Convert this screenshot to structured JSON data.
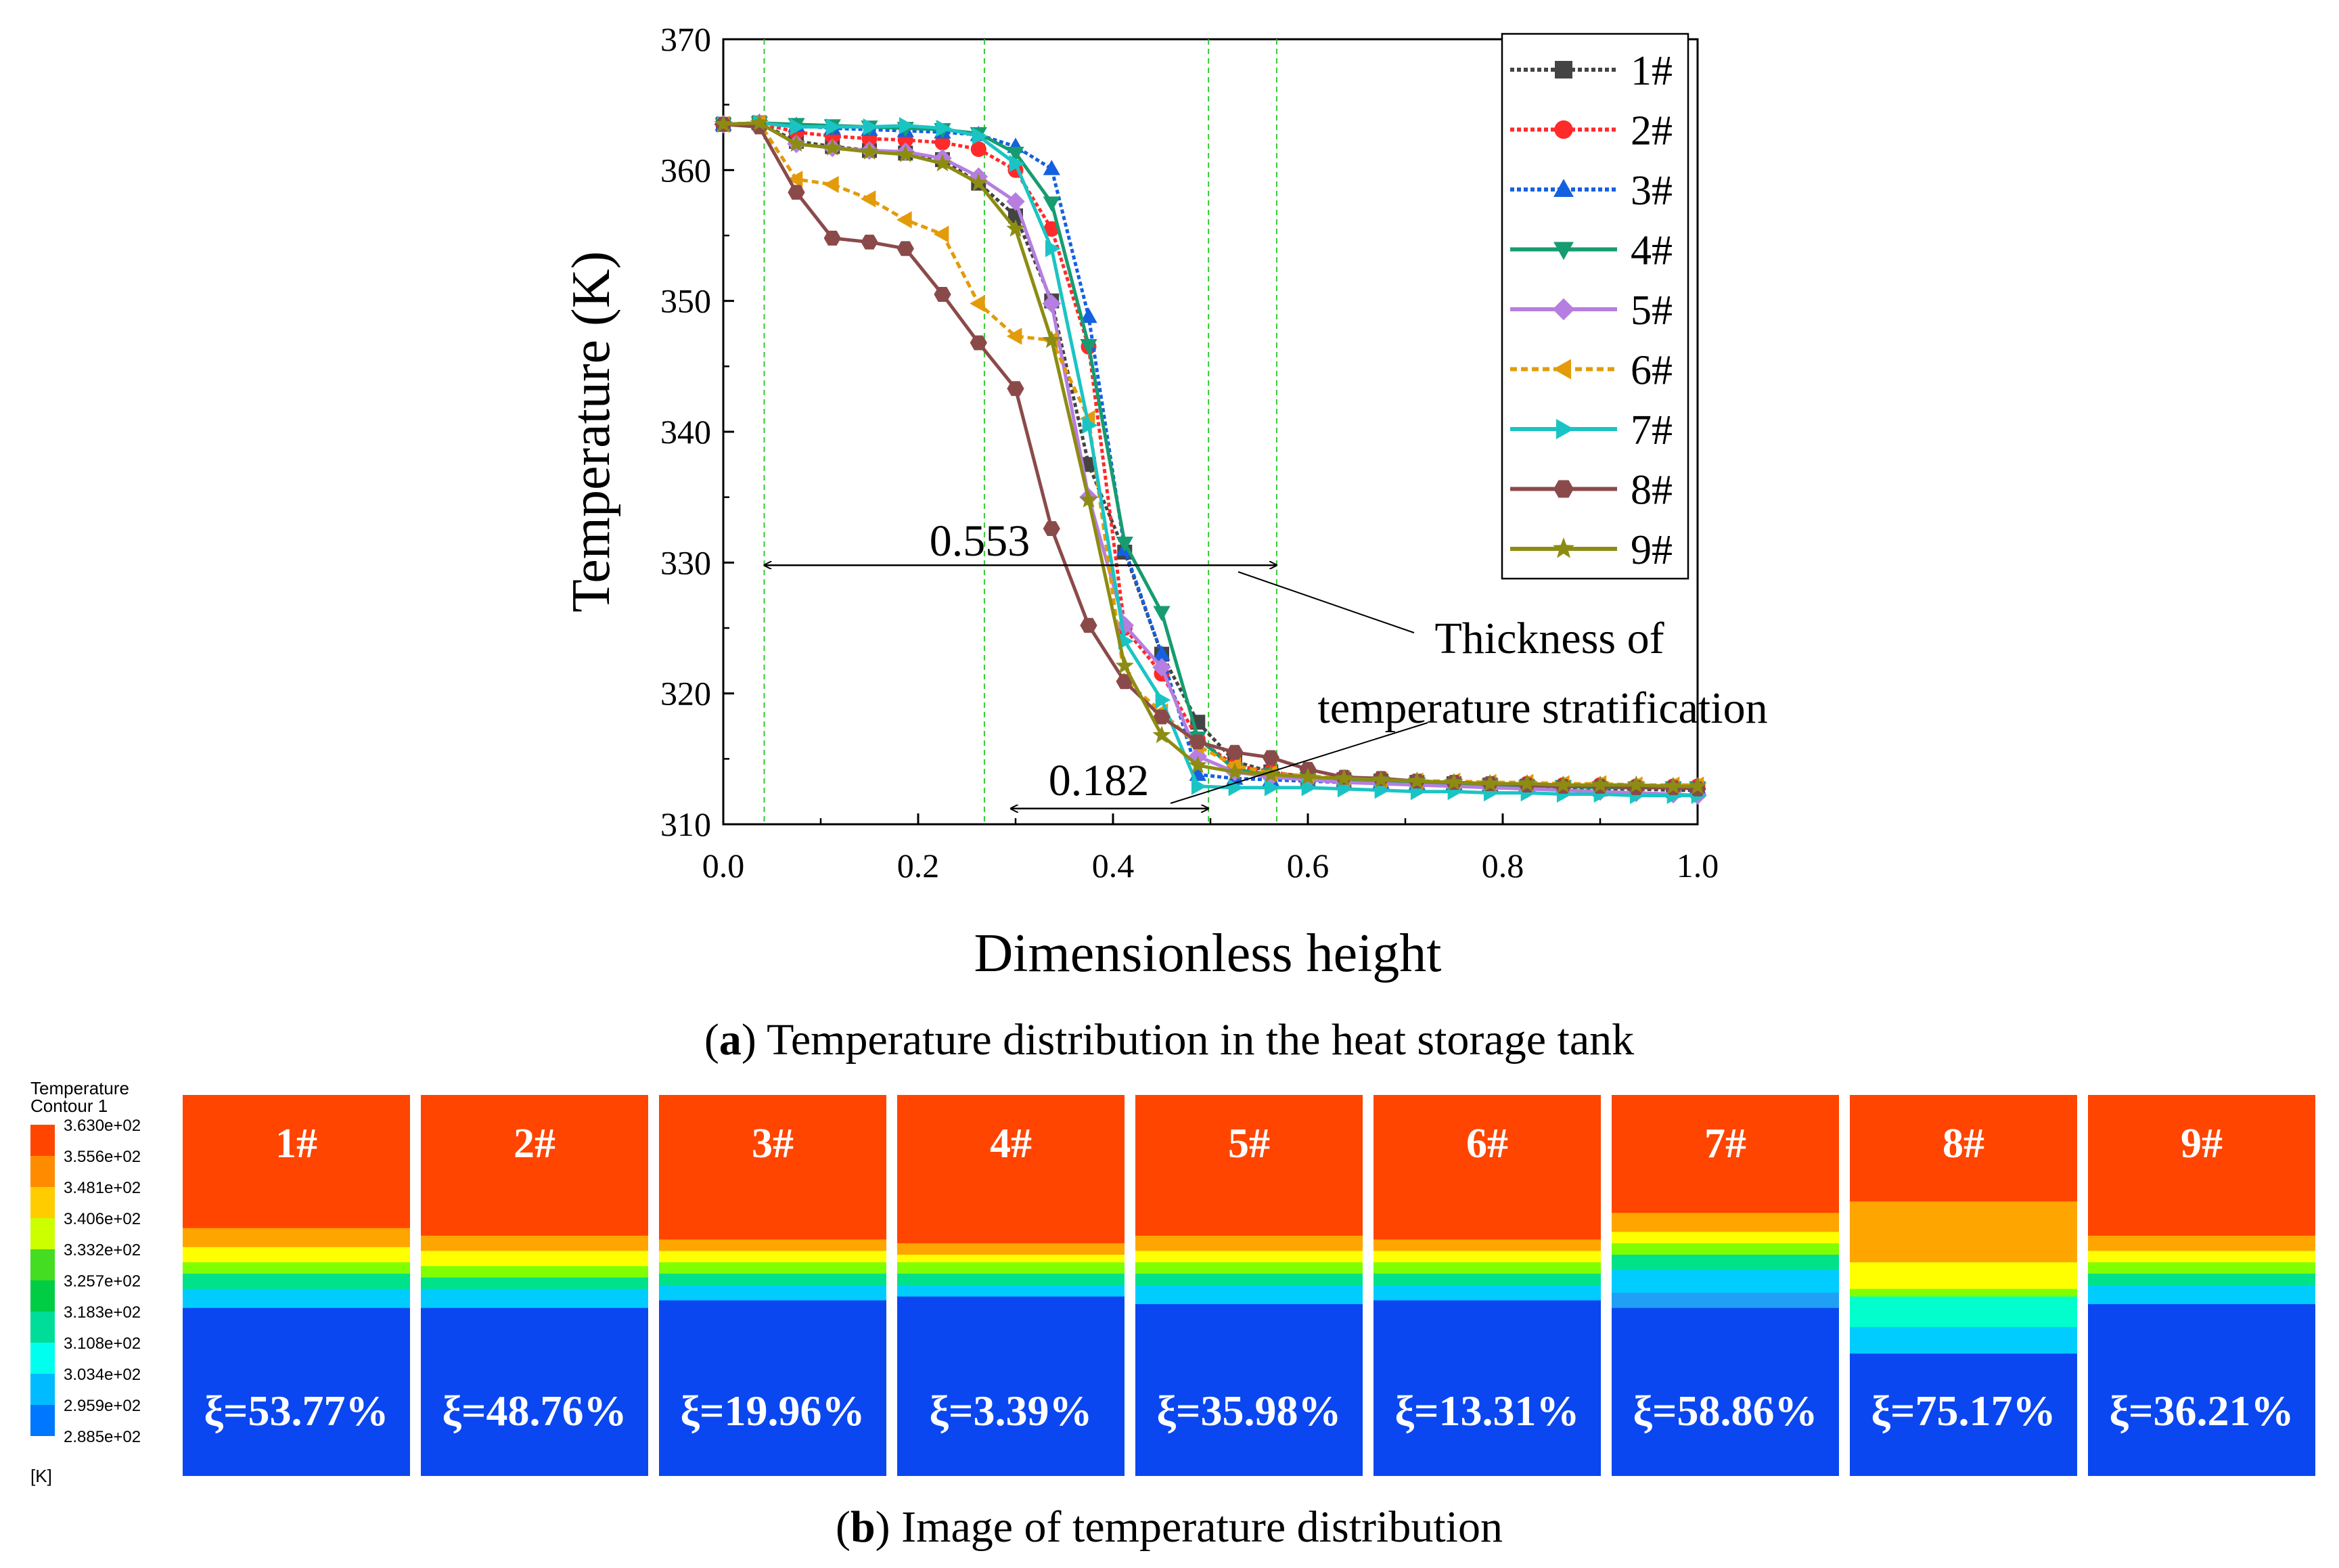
{
  "chart_data": {
    "type": "line",
    "title": "",
    "xlabel": "Dimensionless height",
    "ylabel": "Temperature (K)",
    "xlim": [
      0.0,
      1.0
    ],
    "ylim": [
      310,
      370
    ],
    "xticks": [
      "0.0",
      "0.2",
      "0.4",
      "0.6",
      "0.8",
      "1.0"
    ],
    "yticks": [
      "310",
      "320",
      "330",
      "340",
      "350",
      "360",
      "370"
    ],
    "x": [
      0.0,
      0.037,
      0.075,
      0.112,
      0.15,
      0.187,
      0.225,
      0.262,
      0.3,
      0.337,
      0.375,
      0.412,
      0.45,
      0.487,
      0.525,
      0.562,
      0.6,
      0.637,
      0.675,
      0.712,
      0.75,
      0.787,
      0.825,
      0.862,
      0.9,
      0.937,
      0.975,
      1.0
    ],
    "series": [
      {
        "name": "1#",
        "color": "#444444",
        "marker": "square",
        "dash": "6,4",
        "values": [
          363.5,
          363.6,
          362.2,
          361.8,
          361.5,
          361.3,
          360.8,
          359.0,
          356.5,
          350.0,
          337.5,
          330.8,
          323.0,
          317.8,
          314.8,
          314.0,
          313.6,
          313.4,
          313.3,
          313.2,
          313.1,
          313.0,
          312.9,
          312.8,
          312.7,
          312.7,
          312.6,
          312.6
        ]
      },
      {
        "name": "2#",
        "color": "#ff2a2a",
        "marker": "circle",
        "dash": "6,4",
        "values": [
          363.5,
          363.6,
          362.9,
          362.6,
          362.4,
          362.3,
          362.1,
          361.6,
          360.0,
          355.5,
          346.5,
          325.0,
          321.5,
          316.5,
          314.5,
          314.0,
          313.6,
          313.4,
          313.3,
          313.2,
          313.2,
          313.1,
          313.1,
          313.0,
          313.0,
          312.9,
          312.9,
          312.9
        ]
      },
      {
        "name": "3#",
        "color": "#1560e0",
        "marker": "triangle-up",
        "dash": "6,4",
        "values": [
          363.5,
          363.6,
          363.4,
          363.2,
          363.1,
          363.0,
          362.9,
          362.7,
          361.8,
          360.1,
          348.8,
          331.0,
          323.0,
          313.8,
          313.5,
          313.4,
          313.3,
          313.2,
          313.2,
          313.1,
          313.1,
          313.0,
          313.0,
          313.0,
          312.9,
          312.9,
          312.8,
          312.8
        ]
      },
      {
        "name": "4#",
        "color": "#169c70",
        "marker": "triangle-down",
        "dash": "",
        "values": [
          363.5,
          363.6,
          363.5,
          363.4,
          363.3,
          363.2,
          363.1,
          362.8,
          361.3,
          357.5,
          346.6,
          331.5,
          326.2,
          316.6,
          314.2,
          313.8,
          313.5,
          313.3,
          313.2,
          313.1,
          313.0,
          313.0,
          312.9,
          312.9,
          312.8,
          312.8,
          312.8,
          312.8
        ]
      },
      {
        "name": "5#",
        "color": "#b57ee0",
        "marker": "diamond",
        "dash": "",
        "values": [
          363.5,
          363.6,
          362.0,
          361.7,
          361.5,
          361.4,
          360.9,
          359.5,
          357.6,
          349.8,
          335.0,
          325.2,
          322.0,
          315.2,
          314.0,
          313.6,
          313.4,
          313.2,
          313.1,
          313.0,
          312.9,
          312.8,
          312.7,
          312.6,
          312.5,
          312.4,
          312.3,
          312.2
        ]
      },
      {
        "name": "6#",
        "color": "#e39b0a",
        "marker": "triangle-left",
        "dash": "10,6",
        "values": [
          363.5,
          363.6,
          359.3,
          358.9,
          357.8,
          356.2,
          355.1,
          349.8,
          347.3,
          347.0,
          341.0,
          321.0,
          318.6,
          316.0,
          314.5,
          313.9,
          313.7,
          313.5,
          313.4,
          313.3,
          313.3,
          313.2,
          313.2,
          313.1,
          313.1,
          313.0,
          313.0,
          313.0
        ]
      },
      {
        "name": "7#",
        "color": "#1bc4c4",
        "marker": "triangle-right",
        "dash": "",
        "values": [
          363.5,
          363.6,
          363.3,
          363.3,
          363.3,
          363.4,
          363.2,
          362.6,
          360.5,
          354.0,
          340.5,
          324.0,
          319.5,
          312.9,
          312.8,
          312.8,
          312.8,
          312.7,
          312.6,
          312.5,
          312.5,
          312.4,
          312.4,
          312.3,
          312.3,
          312.2,
          312.2,
          312.2
        ]
      },
      {
        "name": "8#",
        "color": "#8b4a4a",
        "marker": "hexagon",
        "dash": "",
        "values": [
          363.5,
          363.3,
          358.3,
          354.8,
          354.5,
          354.0,
          350.5,
          346.8,
          343.3,
          332.6,
          325.2,
          320.9,
          318.2,
          316.3,
          315.5,
          315.1,
          314.2,
          313.6,
          313.5,
          313.3,
          313.2,
          313.1,
          313.0,
          312.9,
          312.9,
          312.8,
          312.8,
          312.7
        ]
      },
      {
        "name": "9#",
        "color": "#8c8c12",
        "marker": "star",
        "dash": "",
        "values": [
          363.5,
          363.6,
          362.0,
          361.7,
          361.4,
          361.2,
          360.5,
          359.0,
          355.5,
          347.0,
          334.8,
          322.1,
          316.8,
          314.5,
          314.0,
          313.8,
          313.6,
          313.5,
          313.4,
          313.3,
          313.2,
          313.1,
          313.1,
          313.0,
          313.0,
          313.0,
          312.9,
          312.9
        ]
      }
    ],
    "guide_lines_x": [
      0.042,
      0.268,
      0.498,
      0.568
    ],
    "annotations": {
      "wide_span": {
        "label": "0.553",
        "x_from": 0.042,
        "x_to": 0.568,
        "y": 329.8
      },
      "narrow_span": {
        "label": "0.182",
        "x_from": 0.295,
        "x_to": 0.498,
        "y": 311.2
      },
      "callout_line1": "Thickness of",
      "callout_line2": "temperature stratification"
    },
    "legend_position": "top-right"
  },
  "caption_a": {
    "prefix": "(",
    "letter": "a",
    "text": ") Temperature distribution in the heat storage tank"
  },
  "caption_b": {
    "prefix": "(",
    "letter": "b",
    "text": ") Image of temperature distribution"
  },
  "contour_legend": {
    "title_line1": "Temperature",
    "title_line2": "Contour 1",
    "unit": "[K]",
    "levels": [
      "3.630e+02",
      "3.556e+02",
      "3.481e+02",
      "3.406e+02",
      "3.332e+02",
      "3.257e+02",
      "3.183e+02",
      "3.108e+02",
      "3.034e+02",
      "2.959e+02",
      "2.885e+02"
    ],
    "colors": [
      "#ff4500",
      "#ff8c00",
      "#ffcc00",
      "#ccff00",
      "#44dd22",
      "#00cc44",
      "#00dd99",
      "#00ffee",
      "#00bbff",
      "#0077ff",
      "#0044ee"
    ]
  },
  "contour_panels": [
    {
      "label": "1#",
      "xi": "ξ=53.77%",
      "bands": [
        {
          "color": "#ff4500",
          "h": 0.35
        },
        {
          "color": "#ffa500",
          "h": 0.05
        },
        {
          "color": "#ffff00",
          "h": 0.04
        },
        {
          "color": "#7fff00",
          "h": 0.03
        },
        {
          "color": "#00e28a",
          "h": 0.04
        },
        {
          "color": "#00ccff",
          "h": 0.05
        },
        {
          "color": "#0a47f0",
          "h": 0.44
        }
      ]
    },
    {
      "label": "2#",
      "xi": "ξ=48.76%",
      "bands": [
        {
          "color": "#ff4500",
          "h": 0.37
        },
        {
          "color": "#ffa500",
          "h": 0.04
        },
        {
          "color": "#ffff00",
          "h": 0.04
        },
        {
          "color": "#7fff00",
          "h": 0.03
        },
        {
          "color": "#00e28a",
          "h": 0.03
        },
        {
          "color": "#00ccff",
          "h": 0.05
        },
        {
          "color": "#0a47f0",
          "h": 0.44
        }
      ]
    },
    {
      "label": "3#",
      "xi": "ξ=19.96%",
      "bands": [
        {
          "color": "#ff4500",
          "h": 0.38
        },
        {
          "color": "#ffa500",
          "h": 0.03
        },
        {
          "color": "#ffff00",
          "h": 0.03
        },
        {
          "color": "#7fff00",
          "h": 0.03
        },
        {
          "color": "#00e28a",
          "h": 0.03
        },
        {
          "color": "#00ccff",
          "h": 0.04
        },
        {
          "color": "#0a47f0",
          "h": 0.46
        }
      ]
    },
    {
      "label": "4#",
      "xi": "ξ=3.39%",
      "bands": [
        {
          "color": "#ff4500",
          "h": 0.39
        },
        {
          "color": "#ffa500",
          "h": 0.03
        },
        {
          "color": "#ffff00",
          "h": 0.02
        },
        {
          "color": "#7fff00",
          "h": 0.03
        },
        {
          "color": "#00e28a",
          "h": 0.03
        },
        {
          "color": "#00ccff",
          "h": 0.03
        },
        {
          "color": "#0a47f0",
          "h": 0.47
        }
      ]
    },
    {
      "label": "5#",
      "xi": "ξ=35.98%",
      "bands": [
        {
          "color": "#ff4500",
          "h": 0.37
        },
        {
          "color": "#ffa500",
          "h": 0.04
        },
        {
          "color": "#ffff00",
          "h": 0.03
        },
        {
          "color": "#7fff00",
          "h": 0.03
        },
        {
          "color": "#00e28a",
          "h": 0.03
        },
        {
          "color": "#00ccff",
          "h": 0.05
        },
        {
          "color": "#0a47f0",
          "h": 0.45
        }
      ]
    },
    {
      "label": "6#",
      "xi": "ξ=13.31%",
      "bands": [
        {
          "color": "#ff4500",
          "h": 0.38
        },
        {
          "color": "#ffa500",
          "h": 0.03
        },
        {
          "color": "#ffff00",
          "h": 0.03
        },
        {
          "color": "#7fff00",
          "h": 0.03
        },
        {
          "color": "#00e28a",
          "h": 0.03
        },
        {
          "color": "#00ccff",
          "h": 0.04
        },
        {
          "color": "#0a47f0",
          "h": 0.46
        }
      ]
    },
    {
      "label": "7#",
      "xi": "ξ=58.86%",
      "bands": [
        {
          "color": "#ff4500",
          "h": 0.31
        },
        {
          "color": "#ffa500",
          "h": 0.05
        },
        {
          "color": "#ffff00",
          "h": 0.03
        },
        {
          "color": "#7fff00",
          "h": 0.03
        },
        {
          "color": "#00e28a",
          "h": 0.04
        },
        {
          "color": "#00ccff",
          "h": 0.06
        },
        {
          "color": "#1fa0f5",
          "h": 0.04
        },
        {
          "color": "#0a47f0",
          "h": 0.44
        }
      ]
    },
    {
      "label": "8#",
      "xi": "ξ=75.17%",
      "bands": [
        {
          "color": "#ff4500",
          "h": 0.28
        },
        {
          "color": "#ffa500",
          "h": 0.16
        },
        {
          "color": "#ffff00",
          "h": 0.07
        },
        {
          "color": "#7fff00",
          "h": 0.02
        },
        {
          "color": "#00ffcc",
          "h": 0.08
        },
        {
          "color": "#00ccff",
          "h": 0.07
        },
        {
          "color": "#0a47f0",
          "h": 0.32
        }
      ]
    },
    {
      "label": "9#",
      "xi": "ξ=36.21%",
      "bands": [
        {
          "color": "#ff4500",
          "h": 0.37
        },
        {
          "color": "#ffa500",
          "h": 0.04
        },
        {
          "color": "#ffff00",
          "h": 0.03
        },
        {
          "color": "#7fff00",
          "h": 0.03
        },
        {
          "color": "#00e28a",
          "h": 0.03
        },
        {
          "color": "#00ccff",
          "h": 0.05
        },
        {
          "color": "#0a47f0",
          "h": 0.45
        }
      ]
    }
  ]
}
